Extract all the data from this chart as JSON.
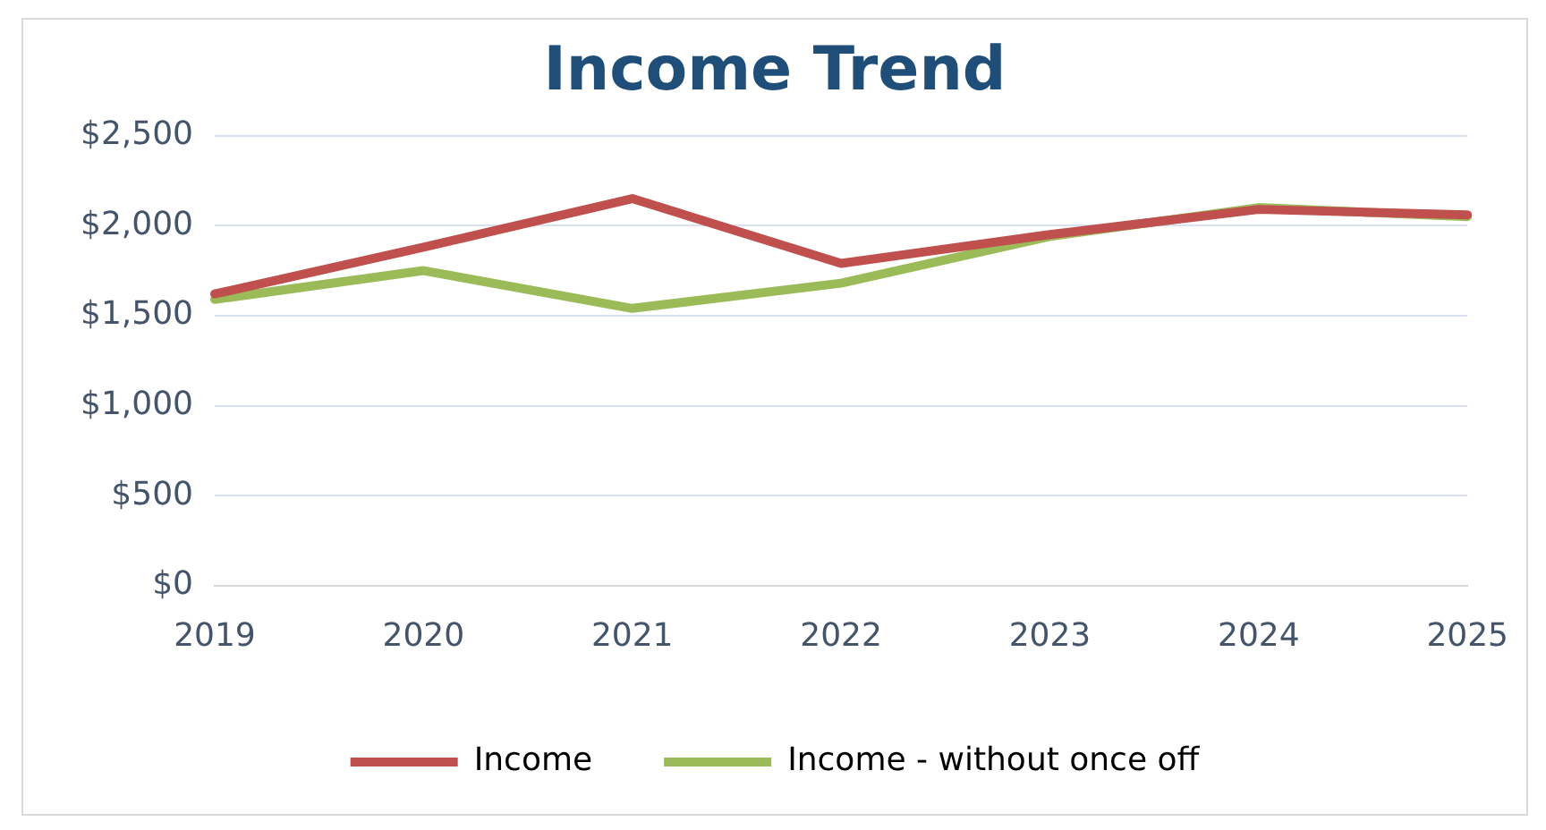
{
  "chart_data": {
    "type": "line",
    "title": "Income Trend",
    "categories": [
      "2019",
      "2020",
      "2021",
      "2022",
      "2023",
      "2024",
      "2025"
    ],
    "series": [
      {
        "name": "Income",
        "color": "#c0504d",
        "values": [
          1620,
          1880,
          2150,
          1790,
          1950,
          2090,
          2060
        ]
      },
      {
        "name": "Income - without once off",
        "color": "#9bbb59",
        "values": [
          1590,
          1750,
          1540,
          1680,
          1940,
          2100,
          2050
        ]
      }
    ],
    "ylim": [
      0,
      2500
    ],
    "yticks": [
      {
        "value": 0,
        "label": "$0"
      },
      {
        "value": 500,
        "label": "$500"
      },
      {
        "value": 1000,
        "label": "$1,000"
      },
      {
        "value": 1500,
        "label": "$1,500"
      },
      {
        "value": 2000,
        "label": "$2,000"
      },
      {
        "value": 2500,
        "label": "$2,500"
      }
    ],
    "grid": "y",
    "legend": "bottom",
    "marker": "none",
    "line_style": "solid"
  }
}
